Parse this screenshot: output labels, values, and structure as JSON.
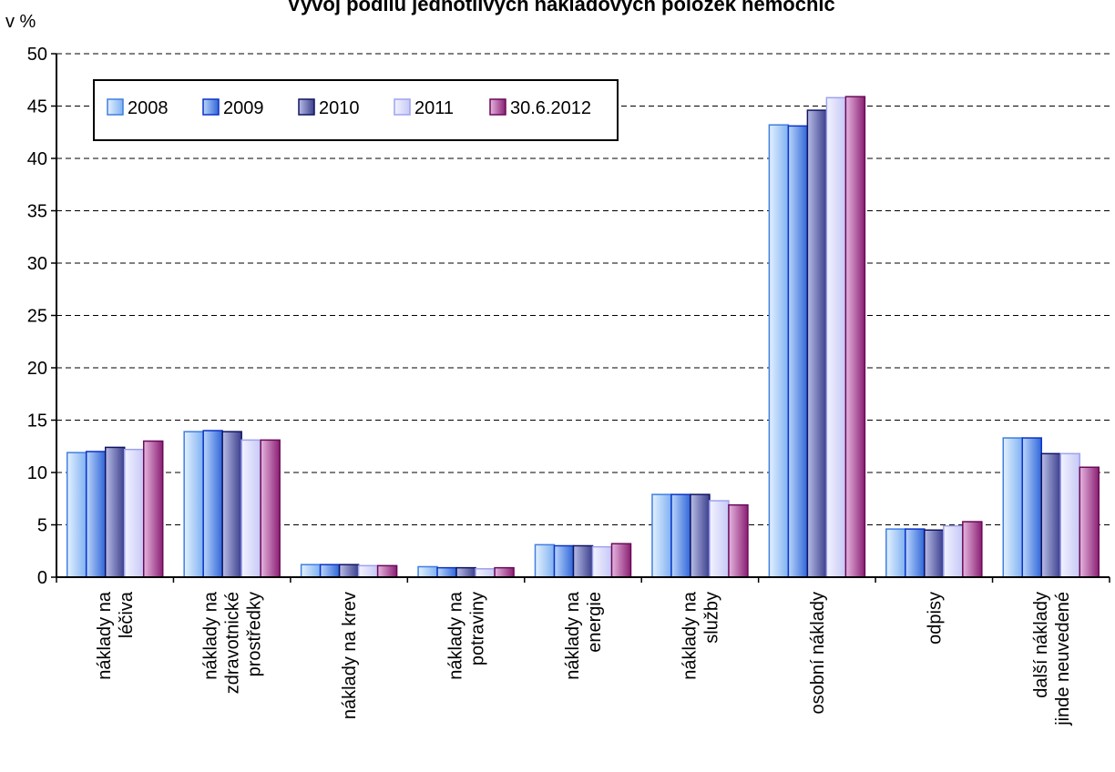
{
  "chart_data": {
    "type": "bar",
    "title": "Vývoj podílu jednotlivých nákladových položek nemocnic",
    "ylabel": "v %",
    "xlabel": "",
    "ylim": [
      0,
      50
    ],
    "yticks": [
      0,
      5,
      10,
      15,
      20,
      25,
      30,
      35,
      40,
      45,
      50
    ],
    "grid": true,
    "legend_position": "top-left",
    "categories": [
      [
        "náklady na",
        "léčiva"
      ],
      [
        "náklady na",
        "zdravotnické",
        "prostředky"
      ],
      [
        "náklady na krev"
      ],
      [
        "náklady na",
        "potraviny"
      ],
      [
        "náklady na",
        "energie"
      ],
      [
        "náklady na",
        "služby"
      ],
      [
        "osobní náklady"
      ],
      [
        "odpisy"
      ],
      [
        "další náklady",
        "jinde neuvedené"
      ]
    ],
    "series": [
      {
        "name": "2008",
        "color_light": "#e4f1ff",
        "color_dark": "#7fb1f2",
        "edge": "#3f7fe0",
        "values": [
          11.9,
          13.9,
          1.2,
          1.0,
          3.1,
          7.9,
          43.2,
          4.6,
          13.3
        ]
      },
      {
        "name": "2009",
        "color_light": "#bcd6fb",
        "color_dark": "#2f66d8",
        "edge": "#0a32c8",
        "values": [
          12.0,
          14.0,
          1.2,
          0.9,
          3.0,
          7.9,
          43.1,
          4.6,
          13.3
        ]
      },
      {
        "name": "2010",
        "color_light": "#b9bde6",
        "color_dark": "#3a3e8c",
        "edge": "#101463",
        "values": [
          12.4,
          13.9,
          1.2,
          0.9,
          3.0,
          7.9,
          44.6,
          4.5,
          11.8
        ]
      },
      {
        "name": "2011",
        "color_light": "#f3f3ff",
        "color_dark": "#c6c8f6",
        "edge": "#9ea2ee",
        "values": [
          12.2,
          13.1,
          1.1,
          0.8,
          2.9,
          7.3,
          45.8,
          4.9,
          11.8
        ]
      },
      {
        "name": "30.6.2012",
        "color_light": "#e6b6e0",
        "color_dark": "#8a1f72",
        "edge": "#6a0a58",
        "values": [
          13.0,
          13.1,
          1.1,
          0.9,
          3.2,
          6.9,
          45.9,
          5.3,
          10.5
        ]
      }
    ]
  }
}
